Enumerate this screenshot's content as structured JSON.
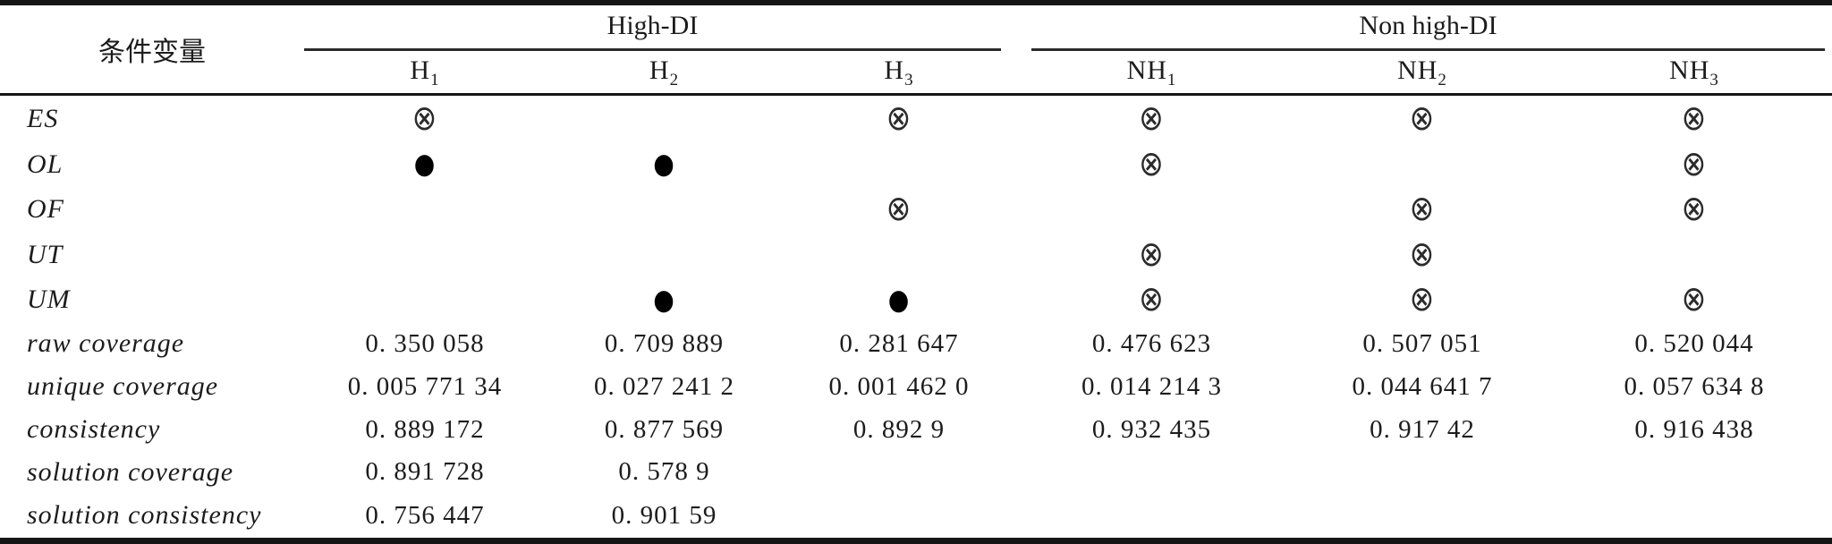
{
  "table": {
    "corner_header": "条件变量",
    "groups": [
      {
        "label": "High-DI"
      },
      {
        "label": "Non high-DI"
      }
    ],
    "columns": [
      {
        "base": "H",
        "sub": "1"
      },
      {
        "base": "H",
        "sub": "2"
      },
      {
        "base": "H",
        "sub": "3"
      },
      {
        "base": "NH",
        "sub": "1"
      },
      {
        "base": "NH",
        "sub": "2"
      },
      {
        "base": "NH",
        "sub": "3"
      }
    ],
    "symbol_legend": {
      "circled_cross": "⊗",
      "filled_circle": "●"
    },
    "condition_rows": [
      {
        "label": "ES",
        "cells": [
          "⊗",
          "",
          "⊗",
          "⊗",
          "⊗",
          "⊗"
        ]
      },
      {
        "label": "OL",
        "cells": [
          "●",
          "●",
          "",
          "⊗",
          "",
          "⊗"
        ]
      },
      {
        "label": "OF",
        "cells": [
          "",
          "",
          "⊗",
          "",
          "⊗",
          "⊗"
        ]
      },
      {
        "label": "UT",
        "cells": [
          "",
          "",
          "",
          "⊗",
          "⊗",
          ""
        ]
      },
      {
        "label": "UM",
        "cells": [
          "",
          "●",
          "●",
          "⊗",
          "⊗",
          "⊗"
        ]
      }
    ],
    "metric_rows": [
      {
        "label": "raw coverage",
        "cells": [
          "0. 350 058",
          "0. 709 889",
          "0. 281 647",
          "0. 476 623",
          "0. 507 051",
          "0. 520 044"
        ]
      },
      {
        "label": "unique coverage",
        "cells": [
          "0. 005 771 34",
          "0. 027 241 2",
          "0. 001 462 0",
          "0. 014 214 3",
          "0. 044 641 7",
          "0. 057 634 8"
        ]
      },
      {
        "label": "consistency",
        "cells": [
          "0. 889 172",
          "0. 877 569",
          "0. 892 9",
          "0. 932 435",
          "0. 917 42",
          "0. 916 438"
        ]
      },
      {
        "label": "solution coverage",
        "cells": [
          "0. 891 728",
          "0. 578 9",
          "",
          "",
          "",
          ""
        ]
      },
      {
        "label": "solution consistency",
        "cells": [
          "0. 756 447",
          "0. 901 59",
          "",
          "",
          "",
          ""
        ]
      }
    ]
  },
  "colors": {
    "background": "#ffffff",
    "text": "#1c1c1c",
    "rule": "#151515"
  }
}
